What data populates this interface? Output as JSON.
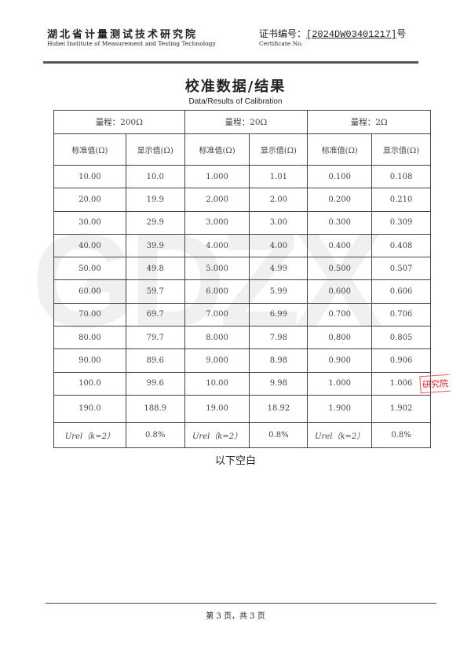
{
  "header": {
    "org_cn": "湖北省计量测试技术研究院",
    "org_en": "Hubei Institute of Measurement and Testing Technology",
    "cert_label": "证书编号：",
    "cert_no": "[2024DW03401217]",
    "cert_suffix": "号",
    "cert_en": "Certificate No."
  },
  "title": "校准数据/结果",
  "subtitle": "Data/Results of Calibration",
  "table": {
    "ranges": [
      "量程：200Ω",
      "量程：20Ω",
      "量程：2Ω"
    ],
    "col_std": "标准值(Ω)",
    "col_disp": "显示值(Ω)",
    "rows": [
      [
        "10.00",
        "10.0",
        "1.000",
        "1.01",
        "0.100",
        "0.108"
      ],
      [
        "20.00",
        "19.9",
        "2.000",
        "2.00",
        "0.200",
        "0.210"
      ],
      [
        "30.00",
        "29.9",
        "3.000",
        "3.00",
        "0.300",
        "0.309"
      ],
      [
        "40.00",
        "39.9",
        "4.000",
        "4.00",
        "0.400",
        "0.408"
      ],
      [
        "50.00",
        "49.8",
        "5.000",
        "4.99",
        "0.500",
        "0.507"
      ],
      [
        "60.00",
        "59.7",
        "6.000",
        "5.99",
        "0.600",
        "0.606"
      ],
      [
        "70.00",
        "69.7",
        "7.000",
        "6.99",
        "0.700",
        "0.706"
      ],
      [
        "80.00",
        "79.7",
        "8.000",
        "7.98",
        "0.800",
        "0.805"
      ],
      [
        "90.00",
        "89.6",
        "9.000",
        "8.98",
        "0.900",
        "0.906"
      ],
      [
        "100.0",
        "99.6",
        "10.00",
        "9.98",
        "1.000",
        "1.006"
      ],
      [
        "190.0",
        "188.9",
        "19.00",
        "18.92",
        "1.900",
        "1.902"
      ]
    ],
    "urel_label": "Urel（k=2）",
    "urel": [
      "0.8%",
      "0.8%",
      "0.8%"
    ]
  },
  "blank_note": "以下空白",
  "footer": "第 3 页，共 3 页",
  "watermark": "GDZX",
  "stamp": "研究院"
}
